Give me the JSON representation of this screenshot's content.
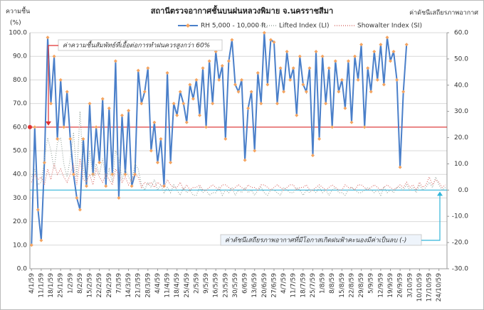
{
  "chart_data": {
    "type": "line",
    "title": "สถานีตรวจอากาศชั้นบนฝนหลวงพิมาย  จ.นครราชสีมา",
    "y_label": [
      "ความชื้น",
      "(%)"
    ],
    "y2_label": "ค่าดัชนีเสถียรภาพอากาศ",
    "annotations": [
      "ค่าความชื้นสัมพัทธ์ที่เอื้อต่อการทำฝนควรสูงกว่า 60%",
      "ค่าดัชนีเสถียรภาพอากาศที่มีโอกาสเกิดฝนฟ้าคะนองมีค่าเป็นลบ (-)"
    ],
    "threshold": 60,
    "threshold_color": "#e03030",
    "reference_y2": 0,
    "reference_color": "#33b5d9",
    "categories": [
      "4/1/59",
      null,
      null,
      "11/1/59",
      null,
      null,
      "18/1/59",
      null,
      null,
      "25/1/59",
      null,
      null,
      "1/2/59",
      null,
      null,
      "8/2/59",
      null,
      null,
      "15/2/59",
      null,
      null,
      "22/2/59",
      null,
      null,
      "29/2/59",
      null,
      null,
      "7/3/59",
      null,
      null,
      "14/3/59",
      null,
      null,
      "21/3/59",
      null,
      null,
      "28/3/59",
      null,
      null,
      "4/4/59",
      null,
      null,
      "11/4/59",
      null,
      null,
      "18/4/59",
      null,
      null,
      "25/4/59",
      null,
      null,
      "2/5/59",
      null,
      null,
      "9/5/59",
      null,
      null,
      "16/5/59",
      null,
      null,
      "23/5/59",
      null,
      null,
      "30/5/59",
      null,
      null,
      "6/6/59",
      null,
      null,
      "13/6/59",
      null,
      null,
      "20/6/59",
      null,
      null,
      "27/6/59",
      null,
      null,
      "4/7/59",
      null,
      null,
      "11/7/59",
      null,
      null,
      "18/7/59",
      null,
      null,
      "25/7/59",
      null,
      null,
      "1/8/59",
      null,
      null,
      "8/8/59",
      null,
      null,
      "15/8/59",
      null,
      null,
      "22/8/59",
      null,
      null,
      "29/8/59",
      null,
      null,
      "5/9/59",
      null,
      null,
      "12/9/59",
      null,
      null,
      "19/9/59",
      null,
      null,
      "26/9/59",
      null,
      null,
      "3/10/59",
      null,
      null,
      "10/10/59",
      null,
      null,
      "17/10/59",
      null,
      null,
      "24/10/59",
      null,
      null
    ],
    "series": [
      {
        "name": "RH 5,000 - 10,000 ft.",
        "color": "#4a7fc9",
        "marker": "#f4a460",
        "dash": "none",
        "values": [
          10,
          60,
          25,
          12,
          45,
          98,
          70,
          90,
          55,
          80,
          60,
          75,
          55,
          40,
          30,
          25,
          55,
          35,
          70,
          40,
          60,
          45,
          72,
          35,
          68,
          40,
          88,
          30,
          65,
          40,
          67,
          35,
          40,
          84,
          70,
          75,
          85,
          50,
          62,
          45,
          55,
          35,
          83,
          45,
          70,
          65,
          75,
          70,
          62,
          78,
          72,
          80,
          65,
          85,
          60,
          88,
          70,
          92,
          80,
          86,
          55,
          88,
          97,
          78,
          75,
          80,
          46,
          68,
          75,
          50,
          83,
          70,
          100,
          78,
          97,
          96,
          70,
          85,
          75,
          92,
          80,
          85,
          65,
          90,
          78,
          75,
          85,
          48,
          92,
          55,
          90,
          70,
          85,
          60,
          88,
          75,
          80,
          68,
          88,
          62,
          90,
          80,
          95,
          60,
          85,
          75,
          92,
          80,
          95,
          78,
          98,
          88,
          92,
          80,
          43,
          75,
          95,
          null,
          null,
          null,
          null,
          null,
          null,
          null,
          null,
          null,
          null,
          null,
          null
        ]
      },
      {
        "name": "Lifted Index (LI)",
        "color": "#9aa8a0",
        "dash": "1 2",
        "axis": "y2",
        "values": [
          5,
          8,
          2,
          3,
          12,
          20,
          15,
          8,
          18,
          20,
          10,
          5,
          12,
          22,
          5,
          30,
          8,
          3,
          15,
          5,
          10,
          6,
          12,
          4,
          8,
          3,
          15,
          12,
          4,
          8,
          5,
          3,
          10,
          8,
          2,
          0,
          3,
          1,
          4,
          0,
          2,
          -1,
          1,
          -1,
          2,
          0,
          -2,
          1,
          -1,
          0,
          -2,
          -2,
          1,
          -1,
          0,
          -2,
          -1,
          -1,
          1,
          -2,
          0,
          -1,
          1,
          -2,
          0,
          -1,
          1,
          -1,
          0,
          -2,
          0,
          1,
          -1,
          -2,
          0,
          0,
          -1,
          -2,
          1,
          0,
          -1,
          -1,
          1,
          0,
          -2,
          0,
          -1,
          0,
          -1,
          1,
          -1,
          0,
          -2,
          0,
          1,
          -1,
          -1,
          -2,
          0,
          1,
          0,
          -1,
          -1,
          0,
          1,
          0,
          -1,
          0,
          -2,
          1,
          -1,
          0,
          -1,
          1,
          1,
          0,
          2,
          0,
          1,
          -1,
          2,
          0,
          1,
          3,
          1,
          5,
          2,
          0,
          1
        ]
      },
      {
        "name": "Showalter Index (SI)",
        "color": "#d9736f",
        "dash": "1 2",
        "axis": "y2",
        "values": [
          3,
          6,
          4,
          5,
          2,
          8,
          4,
          10,
          6,
          8,
          5,
          3,
          6,
          10,
          2,
          12,
          4,
          3,
          6,
          2,
          8,
          5,
          3,
          6,
          4,
          2,
          8,
          6,
          3,
          5,
          2,
          4,
          6,
          5,
          1,
          3,
          2,
          3,
          1,
          3,
          2,
          1,
          4,
          2,
          1,
          1,
          3,
          0,
          2,
          0,
          1,
          1,
          2,
          0,
          0,
          1,
          2,
          1,
          0,
          2,
          2,
          1,
          0,
          1,
          2,
          1,
          0,
          2,
          1,
          1,
          0,
          2,
          2,
          1,
          0,
          1,
          2,
          1,
          0,
          1,
          2,
          2,
          0,
          1,
          1,
          2,
          0,
          0,
          1,
          2,
          1,
          0,
          1,
          2,
          1,
          0,
          0,
          2,
          1,
          1,
          0,
          2,
          2,
          1,
          0,
          1,
          2,
          1,
          0,
          1,
          2,
          1,
          0,
          1,
          2,
          1,
          3,
          1,
          2,
          0,
          3,
          1,
          2,
          5,
          2,
          4,
          3,
          1,
          2
        ]
      }
    ],
    "ylim": [
      0,
      100
    ],
    "yticks": [
      {
        "value": 0,
        "label": "0.0"
      },
      {
        "value": 10,
        "label": "10.0"
      },
      {
        "value": 20,
        "label": "20.0"
      },
      {
        "value": 30,
        "label": "30.0"
      },
      {
        "value": 40,
        "label": "40.0"
      },
      {
        "value": 50,
        "label": "50.0"
      },
      {
        "value": 60,
        "label": "60.0"
      },
      {
        "value": 70,
        "label": "70.0"
      },
      {
        "value": 80,
        "label": "80.0"
      },
      {
        "value": 90,
        "label": "90.0"
      },
      {
        "value": 100,
        "label": "100.0"
      }
    ],
    "y2lim": [
      -30,
      60
    ],
    "y2ticks": [
      {
        "value": -30,
        "label": "-30.0"
      },
      {
        "value": -20,
        "label": "-20.0"
      },
      {
        "value": -10,
        "label": "-10.0"
      },
      {
        "value": 0,
        "label": "0.0"
      },
      {
        "value": 10,
        "label": "10.0"
      },
      {
        "value": 20,
        "label": "20.0"
      },
      {
        "value": 30,
        "label": "30.0"
      },
      {
        "value": 40,
        "label": "40.0"
      },
      {
        "value": 50,
        "label": "50.0"
      },
      {
        "value": 60,
        "label": "60.0"
      }
    ],
    "grid": true
  }
}
